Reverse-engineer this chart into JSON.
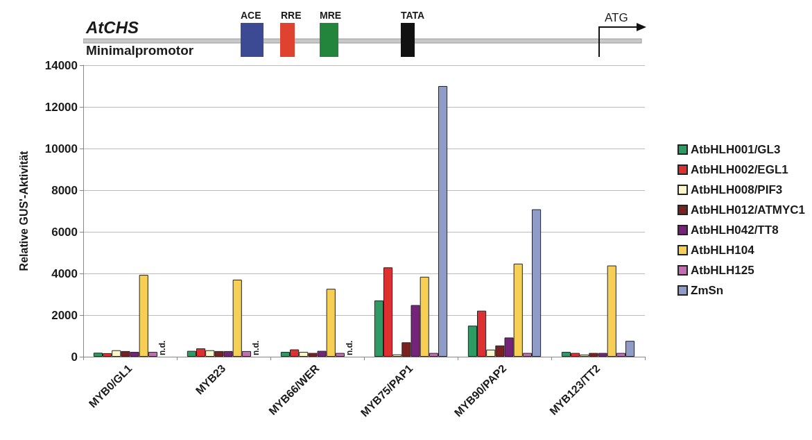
{
  "chart_data": {
    "type": "bar",
    "ylabel": "Relative GUS'-Aktivität",
    "categories": [
      "MYB0/GL1",
      "MYB23",
      "MYB66/WER",
      "MYB75/PAP1",
      "MYB90/PAP2",
      "MYB123/TT2"
    ],
    "series": [
      {
        "name": "AtbHLH001/GL3",
        "color": "#2e9a64",
        "values": [
          190,
          280,
          230,
          2700,
          1490,
          230
        ]
      },
      {
        "name": "AtbHLH002/EGL1",
        "color": "#de3030",
        "values": [
          170,
          400,
          350,
          4290,
          2210,
          180
        ]
      },
      {
        "name": "AtbHLH008/PIF3",
        "color": "#fbf6cc",
        "values": [
          310,
          310,
          230,
          110,
          340,
          100
        ]
      },
      {
        "name": "AtbHLH012/ATMYC1",
        "color": "#7a2222",
        "values": [
          270,
          270,
          180,
          690,
          540,
          180
        ]
      },
      {
        "name": "AtbHLH042/TT8",
        "color": "#75247a",
        "values": [
          230,
          270,
          280,
          2480,
          920,
          180
        ]
      },
      {
        "name": "AtbHLH104",
        "color": "#f7cf55",
        "values": [
          3930,
          3700,
          3260,
          3840,
          4470,
          4380
        ]
      },
      {
        "name": "AtbHLH125",
        "color": "#c070b0",
        "values": [
          230,
          270,
          180,
          180,
          180,
          180
        ]
      },
      {
        "name": "ZmSn",
        "color": "#909cc8",
        "values": [
          null,
          null,
          null,
          13000,
          7080,
          760
        ]
      }
    ],
    "ylim": [
      0,
      14000
    ],
    "yticks": [
      0,
      2000,
      4000,
      6000,
      8000,
      10000,
      12000,
      14000
    ],
    "grid": "y",
    "legend": "right",
    "annotations": [
      "AtCHS",
      "Minimalpromotor",
      "ACE",
      "RRE",
      "MRE",
      "TATA",
      "ATG",
      "n.d.",
      "n.d.",
      "n.d."
    ]
  }
}
